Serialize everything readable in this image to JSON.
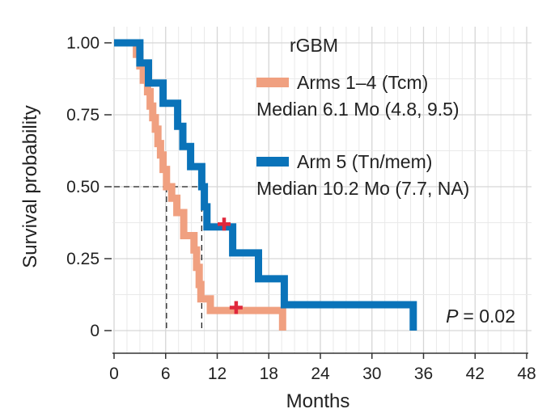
{
  "chart_data": {
    "type": "line",
    "subtype": "kaplan-meier",
    "xlabel": "Months",
    "ylabel": "Survival probability",
    "xlim": [
      0,
      48
    ],
    "ylim": [
      0,
      1
    ],
    "x_ticks": [
      0,
      6,
      12,
      18,
      24,
      30,
      36,
      42,
      48
    ],
    "y_ticks": [
      0,
      0.25,
      0.5,
      0.75,
      1.0
    ],
    "y_tick_labels": [
      "0",
      "0.25",
      "0.50",
      "0.75",
      "1.00"
    ],
    "grid": true,
    "legend": {
      "title": "rGBM",
      "location": "top-right",
      "entries": [
        {
          "name": "Arms 1–4 (Tcm)",
          "median_text": "Median 6.1 Mo (4.8, 9.5)"
        },
        {
          "name": "Arm 5 (Tn/mem)",
          "median_text": "Median 10.2 Mo (7.7, NA)"
        }
      ]
    },
    "annotation": {
      "p_label": "P",
      "p_value": "= 0.02"
    },
    "series": [
      {
        "name": "Arms 1–4 (Tcm)",
        "color": "#F0A080",
        "steps": [
          [
            0,
            1.0
          ],
          [
            2.6,
            1.0
          ],
          [
            2.6,
            0.96
          ],
          [
            3.0,
            0.96
          ],
          [
            3.0,
            0.92
          ],
          [
            3.4,
            0.92
          ],
          [
            3.4,
            0.87
          ],
          [
            3.9,
            0.87
          ],
          [
            3.9,
            0.83
          ],
          [
            4.2,
            0.83
          ],
          [
            4.2,
            0.78
          ],
          [
            4.5,
            0.78
          ],
          [
            4.5,
            0.74
          ],
          [
            4.8,
            0.74
          ],
          [
            4.8,
            0.7
          ],
          [
            5.1,
            0.7
          ],
          [
            5.1,
            0.65
          ],
          [
            5.4,
            0.65
          ],
          [
            5.4,
            0.61
          ],
          [
            5.7,
            0.61
          ],
          [
            5.7,
            0.56
          ],
          [
            6.1,
            0.56
          ],
          [
            6.1,
            0.5
          ],
          [
            6.7,
            0.5
          ],
          [
            6.7,
            0.46
          ],
          [
            7.3,
            0.46
          ],
          [
            7.3,
            0.41
          ],
          [
            8.1,
            0.41
          ],
          [
            8.1,
            0.33
          ],
          [
            9.3,
            0.33
          ],
          [
            9.3,
            0.28
          ],
          [
            9.6,
            0.28
          ],
          [
            9.6,
            0.22
          ],
          [
            9.9,
            0.22
          ],
          [
            9.9,
            0.16
          ],
          [
            10.1,
            0.16
          ],
          [
            10.1,
            0.11
          ],
          [
            11.2,
            0.11
          ],
          [
            11.2,
            0.07
          ],
          [
            19.6,
            0.07
          ],
          [
            19.6,
            0.0
          ]
        ],
        "censored": [
          [
            14.2,
            0.08
          ]
        ],
        "median_months": 6.1
      },
      {
        "name": "Arm 5 (Tn/mem)",
        "color": "#0A73B9",
        "steps": [
          [
            0,
            1.0
          ],
          [
            3.0,
            1.0
          ],
          [
            3.0,
            0.93
          ],
          [
            4.0,
            0.93
          ],
          [
            4.0,
            0.86
          ],
          [
            5.7,
            0.86
          ],
          [
            5.7,
            0.79
          ],
          [
            7.4,
            0.79
          ],
          [
            7.4,
            0.71
          ],
          [
            8.0,
            0.71
          ],
          [
            8.0,
            0.64
          ],
          [
            8.9,
            0.64
          ],
          [
            8.9,
            0.57
          ],
          [
            10.2,
            0.57
          ],
          [
            10.2,
            0.5
          ],
          [
            10.5,
            0.5
          ],
          [
            10.5,
            0.43
          ],
          [
            10.8,
            0.43
          ],
          [
            10.8,
            0.36
          ],
          [
            13.8,
            0.36
          ],
          [
            13.8,
            0.27
          ],
          [
            16.8,
            0.27
          ],
          [
            16.8,
            0.18
          ],
          [
            19.8,
            0.18
          ],
          [
            19.8,
            0.09
          ],
          [
            34.8,
            0.09
          ],
          [
            34.8,
            0.0
          ]
        ],
        "censored": [
          [
            12.8,
            0.37
          ]
        ],
        "median_months": 10.2
      }
    ],
    "censor_color": "#E0283C",
    "reference_line_y": 0.5
  }
}
